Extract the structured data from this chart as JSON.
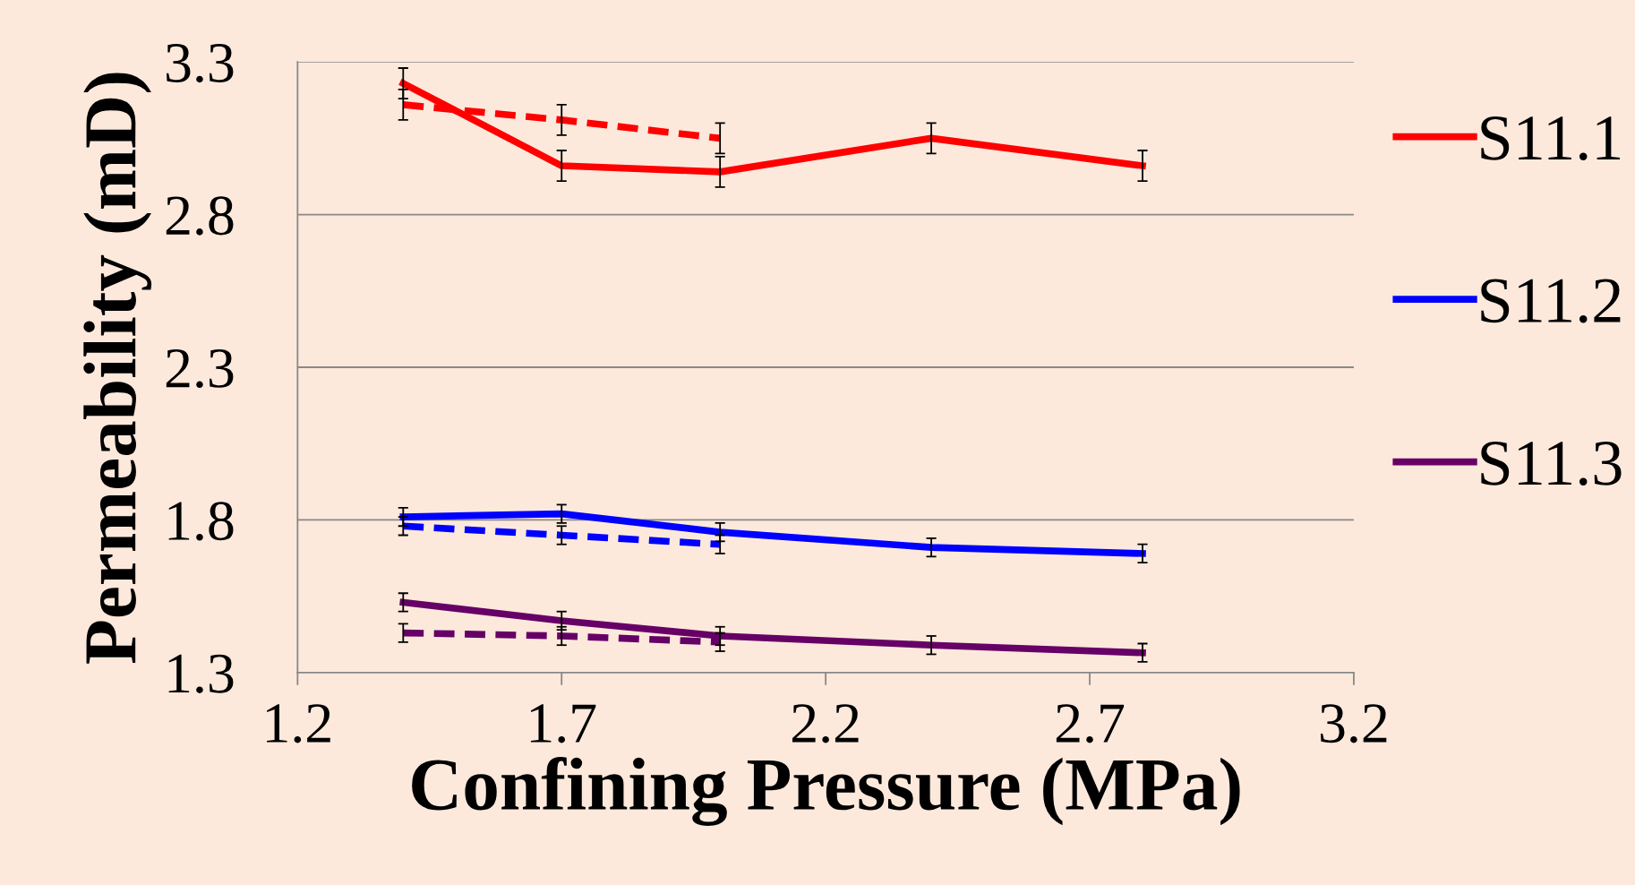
{
  "chart_data": {
    "type": "line",
    "xlabel": "Confining Pressure (MPa)",
    "ylabel": "Permeability (mD)",
    "xlim": [
      1.2,
      3.2
    ],
    "xticks": [
      1.2,
      1.7,
      2.2,
      2.7,
      3.2
    ],
    "ylim": [
      1.3,
      3.3
    ],
    "yticks": [
      1.3,
      1.8,
      2.3,
      2.8,
      3.3
    ],
    "grid": "y",
    "legend": "right",
    "marker": "none",
    "series": [
      {
        "name": "S11.3",
        "color": "#660066",
        "x": [
          1.4,
          1.7,
          2.0,
          2.4,
          2.8
        ],
        "values": [
          1.53,
          1.47,
          1.42,
          1.39,
          1.365
        ],
        "errors": [
          0.03,
          0.03,
          0.03,
          0.03,
          0.03
        ],
        "line_style": "solid"
      },
      {
        "name": "S11.2",
        "color": "#0000ff",
        "x": [
          1.4,
          1.7,
          2.0,
          2.4,
          2.8
        ],
        "values": [
          1.81,
          1.82,
          1.76,
          1.71,
          1.69
        ],
        "errors": [
          0.03,
          0.03,
          0.03,
          0.03,
          0.03
        ],
        "line_style": "solid"
      },
      {
        "name": "S11.1",
        "color": "#ff0000",
        "x": [
          1.4,
          1.7,
          2.0,
          2.4,
          2.8
        ],
        "values": [
          3.23,
          2.96,
          2.94,
          3.05,
          2.96
        ],
        "errors": [
          0.05,
          0.05,
          0.05,
          0.05,
          0.05
        ],
        "line_style": "solid"
      },
      {
        "color": "#660066",
        "x": [
          1.4,
          1.7,
          2.0
        ],
        "values": [
          1.43,
          1.42,
          1.4
        ],
        "errors": [
          0.03,
          0.03,
          0.03
        ],
        "line_style": "dashed"
      },
      {
        "color": "#0000ff",
        "x": [
          1.4,
          1.7,
          2.0
        ],
        "values": [
          1.78,
          1.75,
          1.72
        ],
        "errors": [
          0.03,
          0.03,
          0.03
        ],
        "line_style": "dashed"
      },
      {
        "color": "#ff0000",
        "x": [
          1.4,
          1.7,
          2.0
        ],
        "values": [
          3.16,
          3.11,
          3.05
        ],
        "errors": [
          0.05,
          0.05,
          0.05
        ],
        "line_style": "dashed"
      }
    ]
  }
}
